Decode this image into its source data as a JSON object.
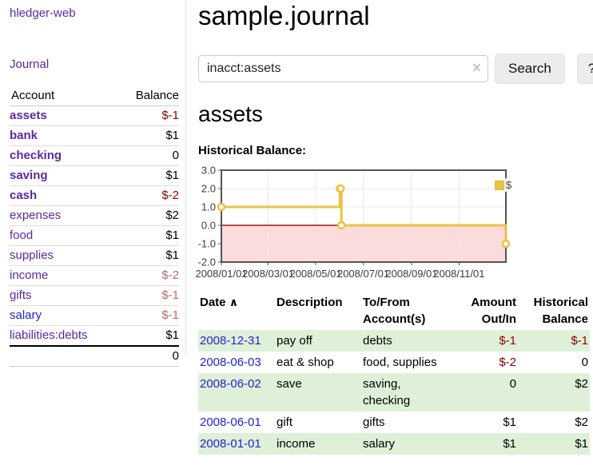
{
  "sidebar": {
    "brand": "hledger-web",
    "nav": {
      "journal": "Journal"
    },
    "table": {
      "headers": {
        "account": "Account",
        "balance": "Balance"
      },
      "accounts": [
        {
          "name": "assets",
          "balance": "$-1"
        },
        {
          "name": "bank",
          "balance": "$1"
        },
        {
          "name": "checking",
          "balance": "0"
        },
        {
          "name": "saving",
          "balance": "$1"
        },
        {
          "name": "cash",
          "balance": "$-2"
        },
        {
          "name": "expenses",
          "balance": "$2"
        },
        {
          "name": "food",
          "balance": "$1"
        },
        {
          "name": "supplies",
          "balance": "$1"
        },
        {
          "name": "income",
          "balance": "$-2"
        },
        {
          "name": "gifts",
          "balance": "$-1"
        },
        {
          "name": "salary",
          "balance": "$-1"
        },
        {
          "name": "liabilities:debts",
          "balance": "$1"
        }
      ],
      "total": "0"
    }
  },
  "header": {
    "title": "sample.journal"
  },
  "search": {
    "value": "inacct:assets",
    "clear_icon": "×",
    "button_label": "Search",
    "help_label": "?"
  },
  "account_page": {
    "heading": "assets",
    "chart_title": "Historical Balance:"
  },
  "chart_data": {
    "type": "line",
    "step": true,
    "title": "Historical Balance",
    "series": [
      {
        "name": "$",
        "color": "#edc240",
        "points": [
          [
            "2008-01-01",
            1
          ],
          [
            "2008-06-01",
            2
          ],
          [
            "2008-06-02",
            2
          ],
          [
            "2008-06-03",
            0
          ],
          [
            "2008-12-31",
            -1
          ]
        ]
      }
    ],
    "xlim": [
      "2008-01-01",
      "2008-12-31"
    ],
    "ylim": [
      -2,
      3
    ],
    "x_ticks": [
      "2008/01/01",
      "2008/03/01",
      "2008/05/01",
      "2008/07/01",
      "2008/09/01",
      "2008/11/01"
    ],
    "y_ticks": [
      "3.0",
      "2.0",
      "1.0",
      "0.0",
      "-1.0",
      "-2.0"
    ],
    "grid": true,
    "legend_position": "top-right",
    "negative_fill": "#fbdbdb",
    "zero_line_color": "#9b1515",
    "border_color": "#545454"
  },
  "register": {
    "headers": {
      "date": "Date",
      "sort_icon": "∧",
      "description": "Description",
      "account": "To/From Account(s)",
      "amount": "Amount Out/In",
      "balance": "Historical Balance"
    },
    "rows": [
      {
        "date": "2008-12-31",
        "description": "pay off",
        "accounts": "debts",
        "amount": "$-1",
        "balance": "$-1"
      },
      {
        "date": "2008-06-03",
        "description": "eat & shop",
        "accounts": "food, supplies",
        "amount": "$-2",
        "balance": "0"
      },
      {
        "date": "2008-06-02",
        "description": "save",
        "accounts": "saving, checking",
        "amount": "0",
        "balance": "$2"
      },
      {
        "date": "2008-06-01",
        "description": "gift",
        "accounts": "gifts",
        "amount": "$1",
        "balance": "$2"
      },
      {
        "date": "2008-01-01",
        "description": "income",
        "accounts": "salary",
        "amount": "$1",
        "balance": "$1"
      }
    ]
  }
}
